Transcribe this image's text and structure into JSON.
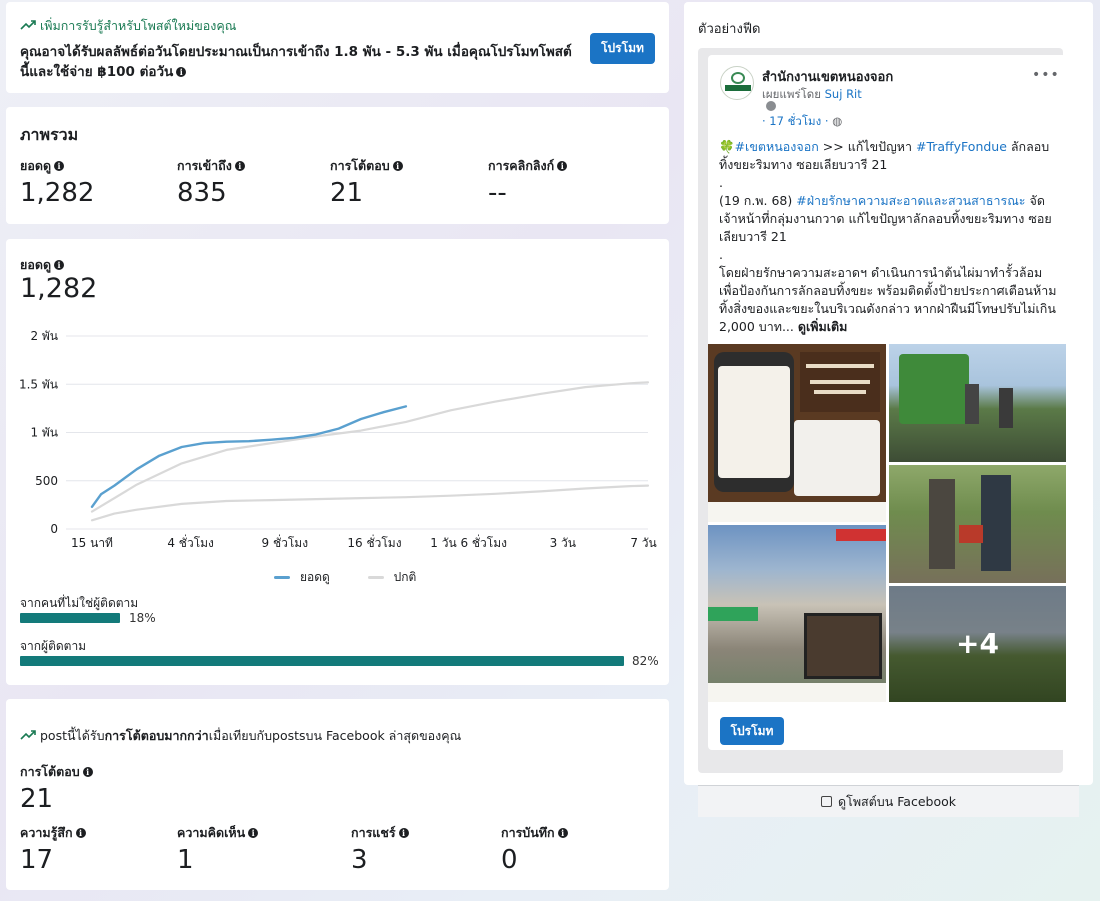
{
  "boost": {
    "tip": "เพิ่มการรับรู้สำหรับโพสต์ใหม่ของคุณ",
    "message": "คุณอาจได้รับผลลัพธ์ต่อวันโดยประมาณเป็นการเข้าถึง 1.8 พัน - 5.3 พัน เมื่อคุณโปรโมทโพสต์นี้และใช้จ่าย ฿100 ต่อวัน",
    "button": "โปรโมท"
  },
  "overview": {
    "title": "ภาพรวม",
    "metrics": [
      {
        "label": "ยอดดู",
        "value": "1,282"
      },
      {
        "label": "การเข้าถึง",
        "value": "835"
      },
      {
        "label": "การโต้ตอบ",
        "value": "21"
      },
      {
        "label": "การคลิกลิงก์",
        "value": "--"
      }
    ]
  },
  "views": {
    "label": "ยอดดู",
    "value": "1,282",
    "legend_views": "ยอดดู",
    "legend_typical": "ปกติ",
    "source_nonfollowers_label": "จากคนที่ไม่ใช่ผู้ติดตาม",
    "source_nonfollowers_pct": "18%",
    "source_nonfollowers_frac": 0.18,
    "source_followers_label": "จากผู้ติดตาม",
    "source_followers_pct": "82%",
    "source_followers_frac": 0.82
  },
  "chart_data": {
    "type": "line",
    "y_tick_labels": [
      "0",
      "500",
      "1 พัน",
      "1.5 พัน",
      "2 พัน"
    ],
    "y_tick_values": [
      0,
      500,
      1000,
      1500,
      2000
    ],
    "x_tick_labels": [
      "15 นาที",
      "4 ชั่วโมง",
      "9 ชั่วโมง",
      "16 ชั่วโมง",
      "1 วัน 6 ชั่วโมง",
      "3 วัน",
      "7 วัน"
    ],
    "ylim": [
      0,
      2000
    ],
    "x_range": [
      0,
      6.2
    ],
    "grid": true,
    "legend_position": "bottom",
    "series": [
      {
        "name": "ยอดดู",
        "color": "#5aa0cf",
        "x": [
          0,
          0.1,
          0.25,
          0.5,
          0.75,
          1.0,
          1.25,
          1.5,
          1.75,
          2.0,
          2.25,
          2.5,
          2.75,
          3.0,
          3.25,
          3.5
        ],
        "y": [
          230,
          360,
          450,
          620,
          760,
          850,
          890,
          905,
          910,
          925,
          945,
          980,
          1040,
          1140,
          1210,
          1270
        ]
      },
      {
        "name": "ปกติ (upper)",
        "color": "#d9d9d9",
        "x": [
          0,
          0.5,
          1.0,
          1.5,
          2.0,
          2.5,
          3.0,
          3.5,
          4.0,
          4.5,
          5.0,
          5.5,
          6.0,
          6.2
        ],
        "y": [
          180,
          460,
          680,
          820,
          890,
          960,
          1020,
          1110,
          1230,
          1320,
          1400,
          1470,
          1510,
          1520
        ]
      },
      {
        "name": "ปกติ (lower)",
        "color": "#d9d9d9",
        "x": [
          0,
          0.25,
          0.5,
          1.0,
          1.5,
          2.0,
          2.5,
          3.0,
          3.5,
          4.0,
          4.5,
          5.0,
          5.5,
          6.0,
          6.2
        ],
        "y": [
          90,
          160,
          200,
          260,
          290,
          300,
          310,
          320,
          330,
          345,
          365,
          390,
          420,
          445,
          450
        ]
      }
    ]
  },
  "engagement": {
    "head_pre": "postนี้ได้รับ",
    "head_bold": "การโต้ตอบมากกว่า",
    "head_post": "เมื่อเทียบกับpostsบน Facebook ล่าสุดของคุณ",
    "total_label": "การโต้ตอบ",
    "total_value": "21",
    "breakdown": [
      {
        "label": "ความรู้สึก",
        "value": "17"
      },
      {
        "label": "ความคิดเห็น",
        "value": "1"
      },
      {
        "label": "การแชร์",
        "value": "3"
      },
      {
        "label": "การบันทึก",
        "value": "0"
      }
    ]
  },
  "preview": {
    "title": "ตัวอย่างฟีด",
    "page_name": "สำนักงานเขตหนองจอก",
    "published_by": "เผยแพร่โดย",
    "publisher": "Suj Rit",
    "time": "· 17 ชั่วโมง ·",
    "more": "•••",
    "line1_icon": "🍀",
    "line1_tag": "#เขตหนองจอก",
    "line1_text": " >> แก้ไขปัญหา ",
    "line1_tag2": "#TraffyFondue",
    "line1_text2": " ลักลอบทิ้งขยะริมทาง ซอยเลียบวารี 21",
    "dot1": ".",
    "line2_pre": "(19 ก.พ. 68) ",
    "line2_tag": "#ฝ่ายรักษาความสะอาดและสวนสาธารณะ",
    "line2_text": " จัดเจ้าหน้าที่กลุ่มงานกวาด แก้ไขปัญหาลักลอบทิ้งขยะริมทาง ซอยเลียบวารี 21",
    "dot2": ".",
    "line3_text": "โดยฝ่ายรักษาความสะอาดฯ ดำเนินการนำต้นไผ่มาทำรั้วล้อมเพื่อป้องกันการลักลอบทิ้งขยะ พร้อมติดตั้งป้ายประกาศเตือนห้ามทิ้งสิ่งของและขยะในบริเวณดังกล่าว หากฝ่าฝืนมีโทษปรับไม่เกิน 2,000 บาท... ",
    "see_more": "ดูเพิ่มเติม",
    "photo_extra": "+4",
    "promote_button": "โปรโมท",
    "fb_link": "ดูโพสต์บน Facebook"
  }
}
